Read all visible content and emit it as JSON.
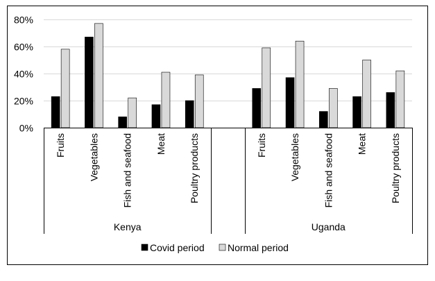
{
  "chart_data": {
    "type": "bar",
    "title": "",
    "xlabel": "",
    "ylabel": "",
    "ylim": [
      0,
      80
    ],
    "ytick_labels": [
      "0%",
      "20%",
      "40%",
      "60%",
      "80%"
    ],
    "ytick_values": [
      0,
      20,
      40,
      60,
      80
    ],
    "grid": "horizontal",
    "legend_position": "bottom",
    "colors": {
      "Covid period": "#000000",
      "Normal period": "#d9d9d9"
    },
    "groups": [
      {
        "name": "Kenya",
        "categories": [
          "Fruits",
          "Vegetables",
          "Fish and seafood",
          "Meat",
          "Poultry products"
        ],
        "series": [
          {
            "name": "Covid period",
            "values": [
              23,
              67,
              8,
              17,
              20
            ]
          },
          {
            "name": "Normal period",
            "values": [
              58,
              77,
              22,
              41,
              39
            ]
          }
        ]
      },
      {
        "name": "Uganda",
        "categories": [
          "Fruits",
          "Vegetables",
          "Fish and seafood",
          "Meat",
          "Poultry products"
        ],
        "series": [
          {
            "name": "Covid period",
            "values": [
              29,
              37,
              12,
              23,
              26
            ]
          },
          {
            "name": "Normal period",
            "values": [
              59,
              64,
              29,
              50,
              42
            ]
          }
        ]
      }
    ]
  }
}
